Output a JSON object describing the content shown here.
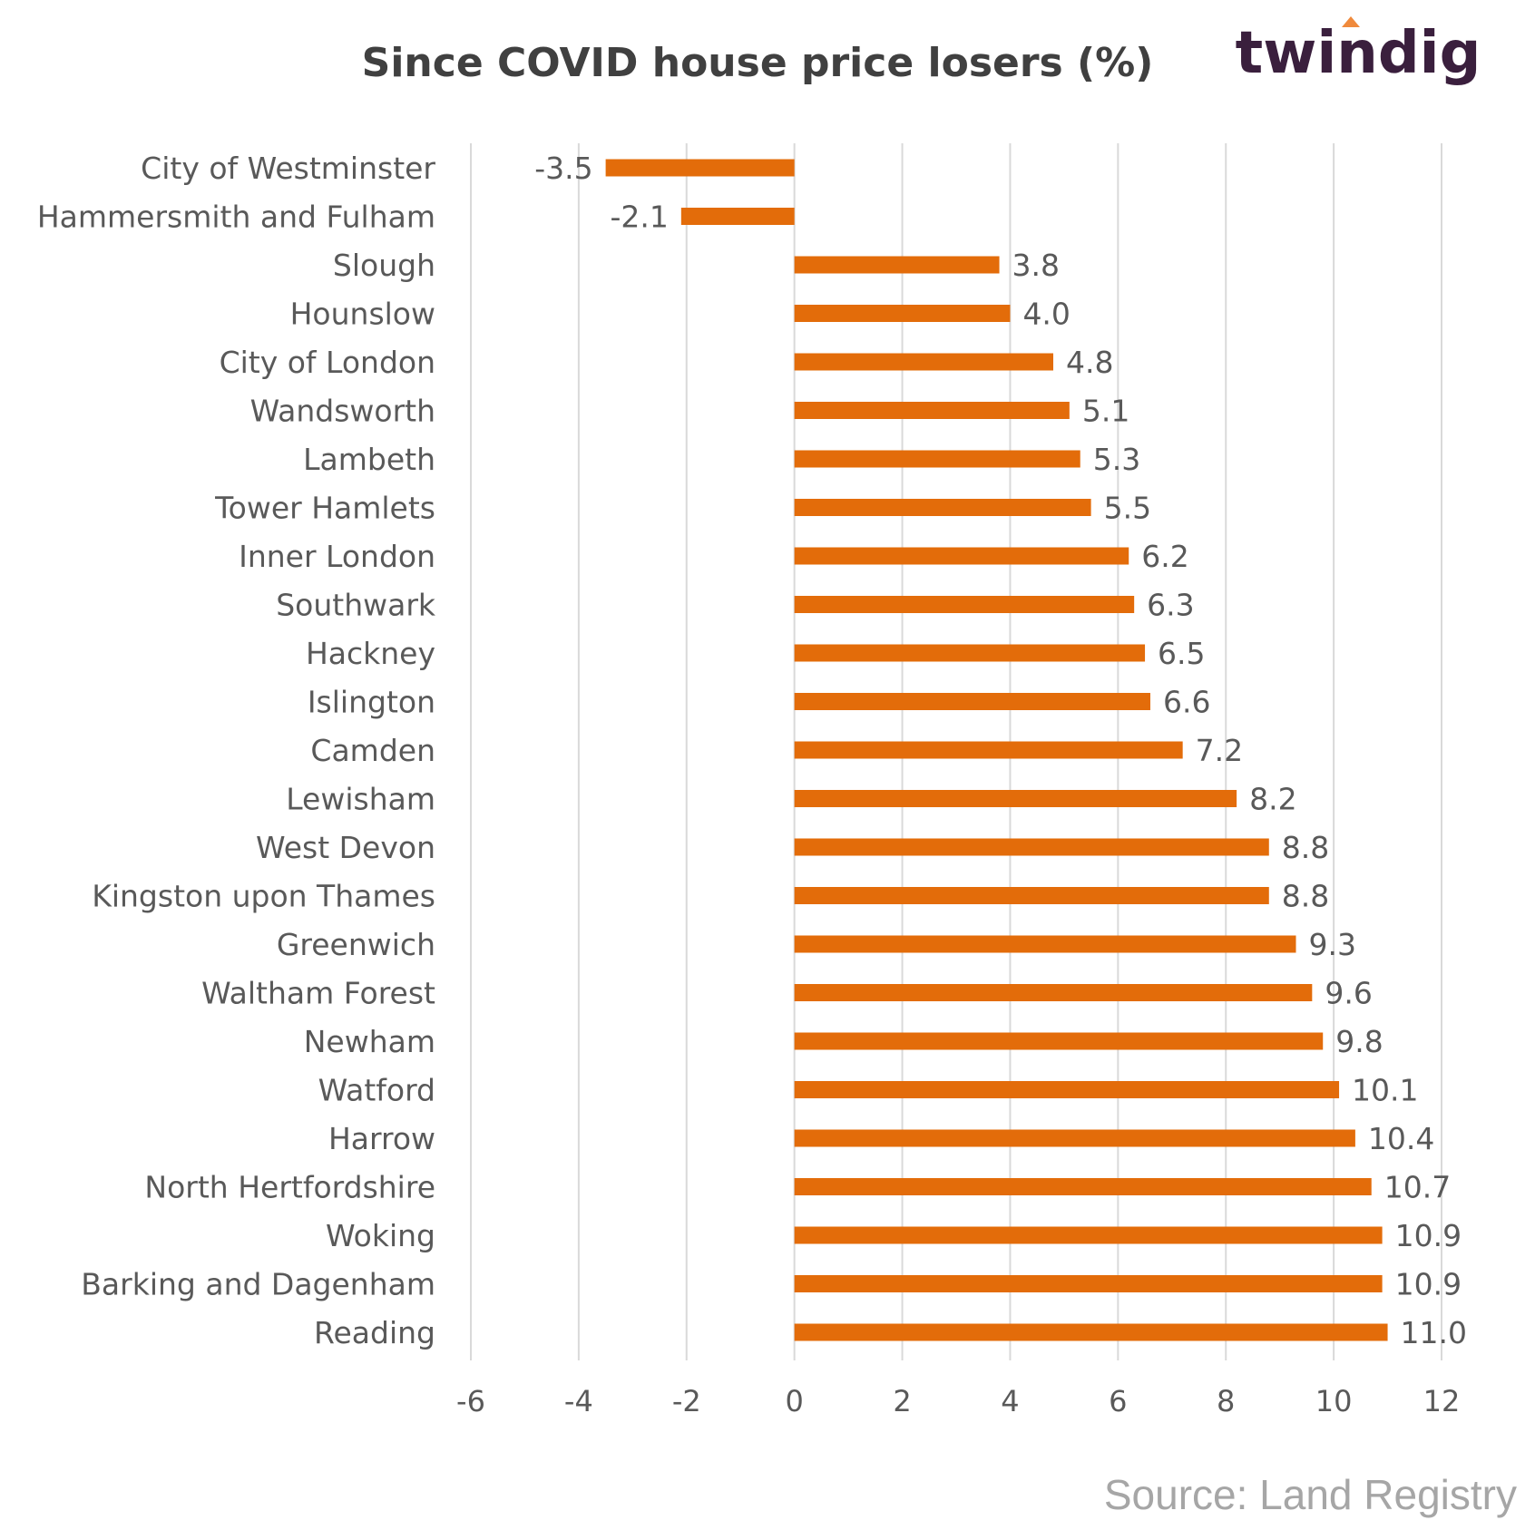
{
  "logo": {
    "text": "twindig",
    "color": "#3a1f3d",
    "accent_color": "#f08a3c"
  },
  "source": {
    "text": "Source: Land Registry",
    "color": "#a6a6a6"
  },
  "colors": {
    "bar": "#e36c0a",
    "gridline": "#d9d9d9",
    "label_text": "#595959",
    "title_text": "#404040"
  },
  "chart_data": {
    "type": "bar",
    "orientation": "horizontal",
    "title": "Since COVID house price losers (%)",
    "xlabel": "",
    "ylabel": "",
    "xlim": [
      -6,
      12
    ],
    "xticks": [
      -6,
      -4,
      -2,
      0,
      2,
      4,
      6,
      8,
      10,
      12
    ],
    "xtick_labels": [
      "-6",
      "-4",
      "-2",
      "0",
      "2",
      "4",
      "6",
      "8",
      "10",
      "12"
    ],
    "grid": true,
    "legend": "none",
    "categories": [
      "City of Westminster",
      "Hammersmith and Fulham",
      "Slough",
      "Hounslow",
      "City of London",
      "Wandsworth",
      "Lambeth",
      "Tower Hamlets",
      "Inner London",
      "Southwark",
      "Hackney",
      "Islington",
      "Camden",
      "Lewisham",
      "West Devon",
      "Kingston upon Thames",
      "Greenwich",
      "Waltham Forest",
      "Newham",
      "Watford",
      "Harrow",
      "North Hertfordshire",
      "Woking",
      "Barking and Dagenham",
      "Reading"
    ],
    "values": [
      -3.5,
      -2.1,
      3.8,
      4.0,
      4.8,
      5.1,
      5.3,
      5.5,
      6.2,
      6.3,
      6.5,
      6.6,
      7.2,
      8.2,
      8.8,
      8.8,
      9.3,
      9.6,
      9.8,
      10.1,
      10.4,
      10.7,
      10.9,
      10.9,
      11.0
    ],
    "data_labels": [
      "-3.5",
      "-2.1",
      "3.8",
      "4.0",
      "4.8",
      "5.1",
      "5.3",
      "5.5",
      "6.2",
      "6.3",
      "6.5",
      "6.6",
      "7.2",
      "8.2",
      "8.8",
      "8.8",
      "9.3",
      "9.6",
      "9.8",
      "10.1",
      "10.4",
      "10.7",
      "10.9",
      "10.9",
      "11.0"
    ]
  }
}
